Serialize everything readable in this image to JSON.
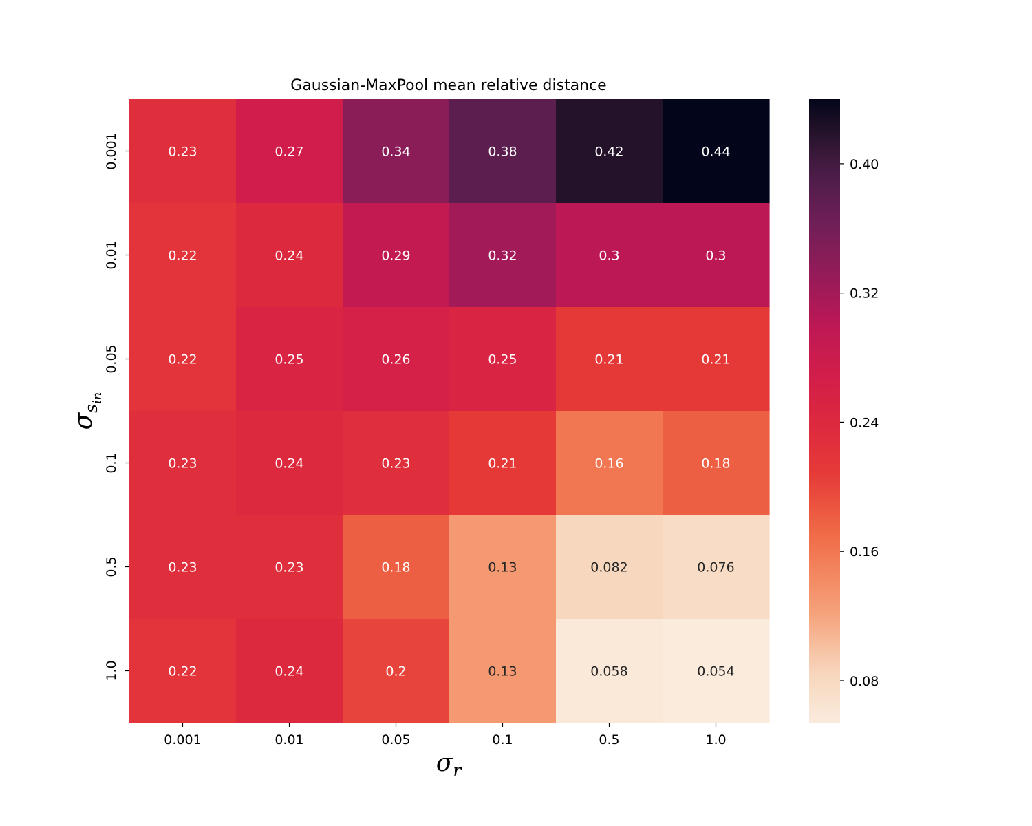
{
  "chart_data": {
    "type": "heatmap",
    "title": "Gaussian-MaxPool mean relative distance",
    "xlabel": {
      "symbol": "σ",
      "sub": "r"
    },
    "ylabel": {
      "symbol": "σ",
      "sub": "s",
      "subsub": "in"
    },
    "x_categories": [
      "0.001",
      "0.01",
      "0.05",
      "0.1",
      "0.5",
      "1.0"
    ],
    "y_categories": [
      "0.001",
      "0.01",
      "0.05",
      "0.1",
      "0.5",
      "1.0"
    ],
    "values": [
      [
        0.23,
        0.27,
        0.34,
        0.38,
        0.42,
        0.44
      ],
      [
        0.22,
        0.24,
        0.29,
        0.32,
        0.3,
        0.3
      ],
      [
        0.22,
        0.25,
        0.26,
        0.25,
        0.21,
        0.21
      ],
      [
        0.23,
        0.24,
        0.23,
        0.21,
        0.16,
        0.18
      ],
      [
        0.23,
        0.23,
        0.18,
        0.13,
        0.082,
        0.076
      ],
      [
        0.22,
        0.24,
        0.2,
        0.13,
        0.058,
        0.054
      ]
    ],
    "labels": [
      [
        "0.23",
        "0.27",
        "0.34",
        "0.38",
        "0.42",
        "0.44"
      ],
      [
        "0.22",
        "0.24",
        "0.29",
        "0.32",
        "0.3",
        "0.3"
      ],
      [
        "0.22",
        "0.25",
        "0.26",
        "0.25",
        "0.21",
        "0.21"
      ],
      [
        "0.23",
        "0.24",
        "0.23",
        "0.21",
        "0.16",
        "0.18"
      ],
      [
        "0.23",
        "0.23",
        "0.18",
        "0.13",
        "0.082",
        "0.076"
      ],
      [
        "0.22",
        "0.24",
        "0.2",
        "0.13",
        "0.058",
        "0.054"
      ]
    ],
    "colorbar": {
      "range": [
        0.054,
        0.44
      ],
      "ticks": [
        "0.08",
        "0.16",
        "0.24",
        "0.32",
        "0.40"
      ],
      "colormap": "rocket_r"
    },
    "grid": false,
    "legend": "right"
  }
}
